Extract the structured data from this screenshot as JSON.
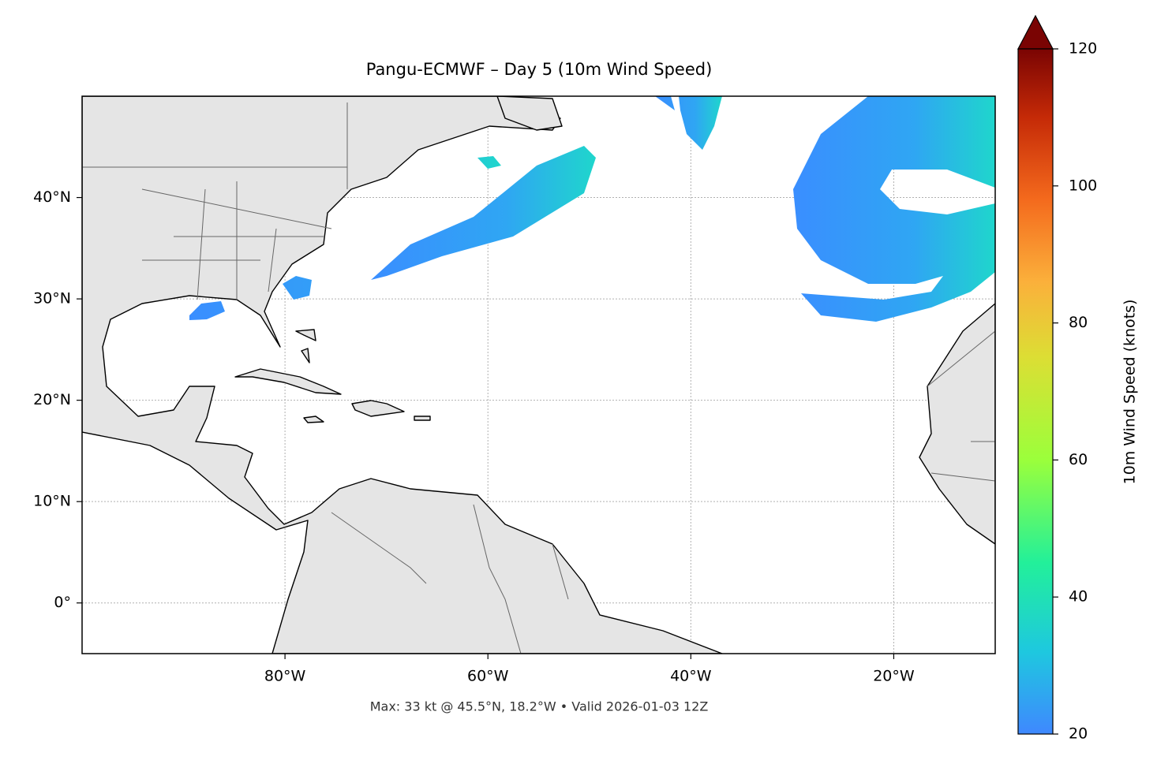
{
  "map": {
    "title": "Pangu-ECMWF – Day 5 (10m Wind Speed)",
    "footer": "Max: 33 kt @ 45.5°N, 18.2°W • Valid 2026-01-03 12Z",
    "xlim": [
      -100,
      -10
    ],
    "ylim": [
      -5,
      50
    ],
    "xticks": [
      {
        "value": -80,
        "label": "80°W"
      },
      {
        "value": -60,
        "label": "60°W"
      },
      {
        "value": -40,
        "label": "40°W"
      },
      {
        "value": -20,
        "label": "20°W"
      }
    ],
    "yticks": [
      {
        "value": 0,
        "label": "0°"
      },
      {
        "value": 10,
        "label": "10°N"
      },
      {
        "value": 20,
        "label": "20°N"
      },
      {
        "value": 30,
        "label": "30°N"
      },
      {
        "value": 40,
        "label": "40°N"
      }
    ],
    "grid": true,
    "colorbar": {
      "label": "10m Wind Speed (knots)",
      "lim": [
        20,
        120
      ],
      "ticks": [
        20,
        40,
        60,
        80,
        100,
        120
      ]
    }
  }
}
